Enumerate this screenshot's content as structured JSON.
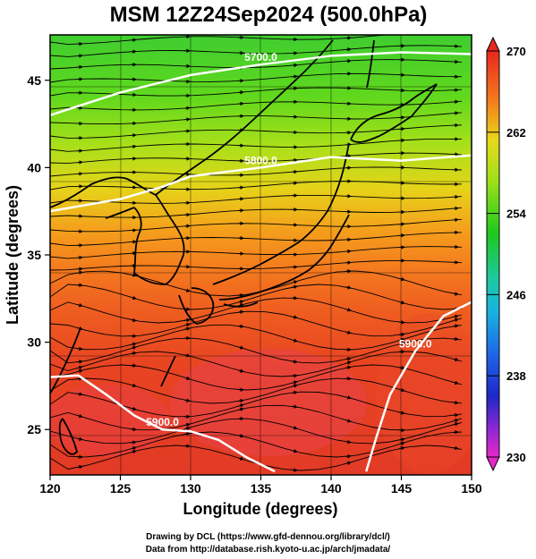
{
  "title": "MSM 12Z24Sep2024 (500.0hPa)",
  "chart_data": {
    "type": "heatmap",
    "title": "MSM 12Z24Sep2024 (500.0hPa)",
    "xlabel": "Longitude (degrees)",
    "ylabel": "Latitude  (degrees)",
    "xlim": [
      120,
      150
    ],
    "ylim": [
      22.4,
      47.6
    ],
    "xticks": [
      "120",
      "125",
      "130",
      "135",
      "140",
      "145",
      "150"
    ],
    "yticks": [
      "25",
      "30",
      "35",
      "40",
      "45"
    ],
    "colorbar": {
      "min": 230,
      "max": 270,
      "labels": [
        "270",
        "262",
        "254",
        "246",
        "238",
        "230"
      ]
    },
    "contours": [
      {
        "label": "5700.0",
        "points": [
          [
            120,
            43.0
          ],
          [
            125,
            44.3
          ],
          [
            130,
            45.3
          ],
          [
            135,
            45.9
          ],
          [
            140,
            46.4
          ],
          [
            145,
            46.6
          ],
          [
            150,
            46.5
          ]
        ]
      },
      {
        "label": "5800.0",
        "points": [
          [
            120,
            37.5
          ],
          [
            125,
            38.2
          ],
          [
            128,
            38.9
          ],
          [
            130,
            39.5
          ],
          [
            135,
            40.0
          ],
          [
            140,
            40.6
          ],
          [
            145,
            40.4
          ],
          [
            150,
            40.7
          ]
        ]
      },
      {
        "label": "5900.0",
        "points": [
          [
            120,
            28.0
          ],
          [
            122,
            28.1
          ],
          [
            124,
            27.0
          ],
          [
            126,
            25.8
          ],
          [
            128,
            25.0
          ],
          [
            130,
            24.9
          ],
          [
            132,
            24.4
          ],
          [
            134,
            23.4
          ],
          [
            136,
            22.6
          ]
        ]
      },
      {
        "label": "5900.0",
        "points": [
          [
            142.5,
            22.6
          ],
          [
            143.2,
            24.5
          ],
          [
            144.2,
            27.0
          ],
          [
            146.0,
            29.5
          ],
          [
            148.0,
            31.5
          ],
          [
            150,
            32.3
          ]
        ]
      }
    ],
    "grid": true
  },
  "colors": {
    "high": "#e8321e",
    "mid": "#7fd400",
    "low": "#00a000",
    "contour": "#ffffff",
    "streamline": "#000000"
  },
  "footer": {
    "line1": "Drawing by DCL (https://www.gfd-dennou.org/library/dcl/)",
    "line2": "Data from http://database.rish.kyoto-u.ac.jp/arch/jmadata/"
  }
}
